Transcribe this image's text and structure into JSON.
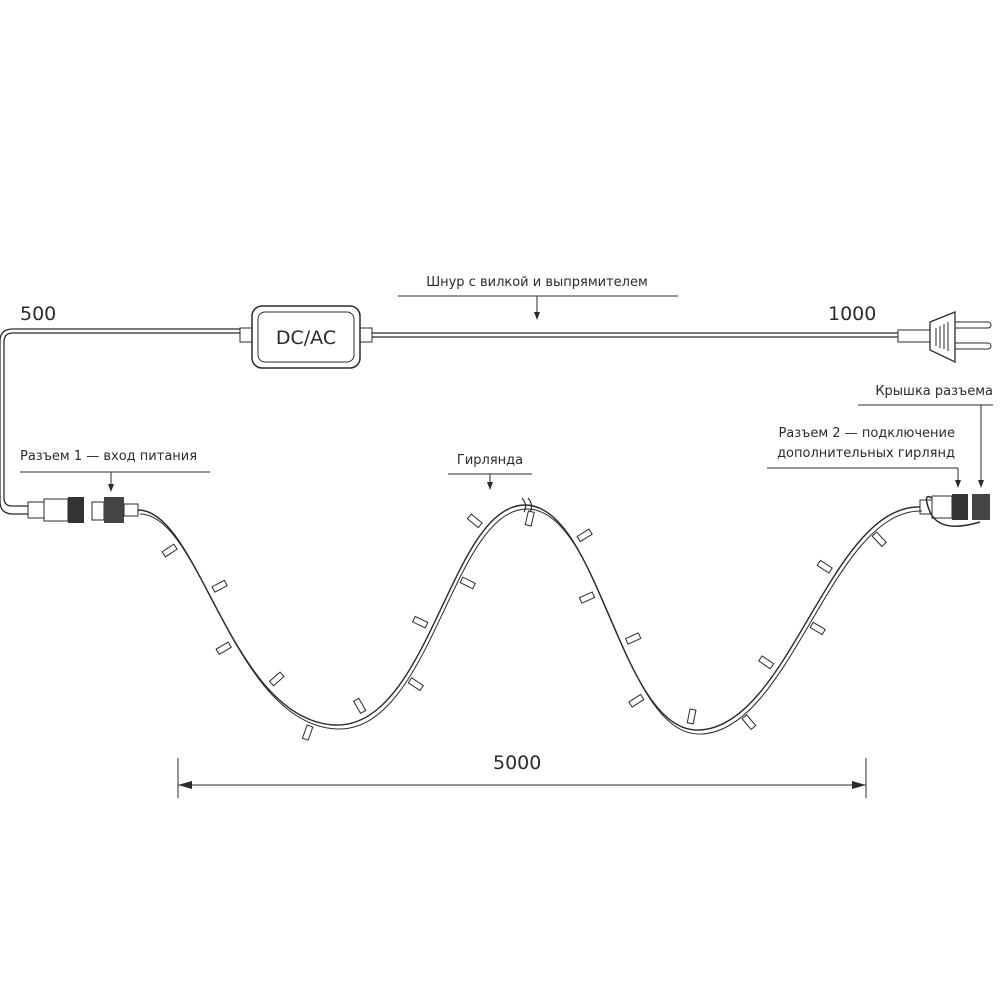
{
  "dimensions": {
    "cord_to_converter": "500",
    "cord_to_plug": "1000",
    "garland_length": "5000"
  },
  "converter": {
    "label": "DC/AC"
  },
  "labels": {
    "cord": "Шнур с вилкой и выпрямителем",
    "connector1": "Разъем 1 — вход питания",
    "garland": "Гирлянда",
    "cap": "Крышка разъема",
    "connector2_line1": "Разъем 2 — подключение",
    "connector2_line2": "дополнительных гирлянд"
  },
  "colors": {
    "line": "#2b2b2b",
    "background": "#ffffff"
  }
}
